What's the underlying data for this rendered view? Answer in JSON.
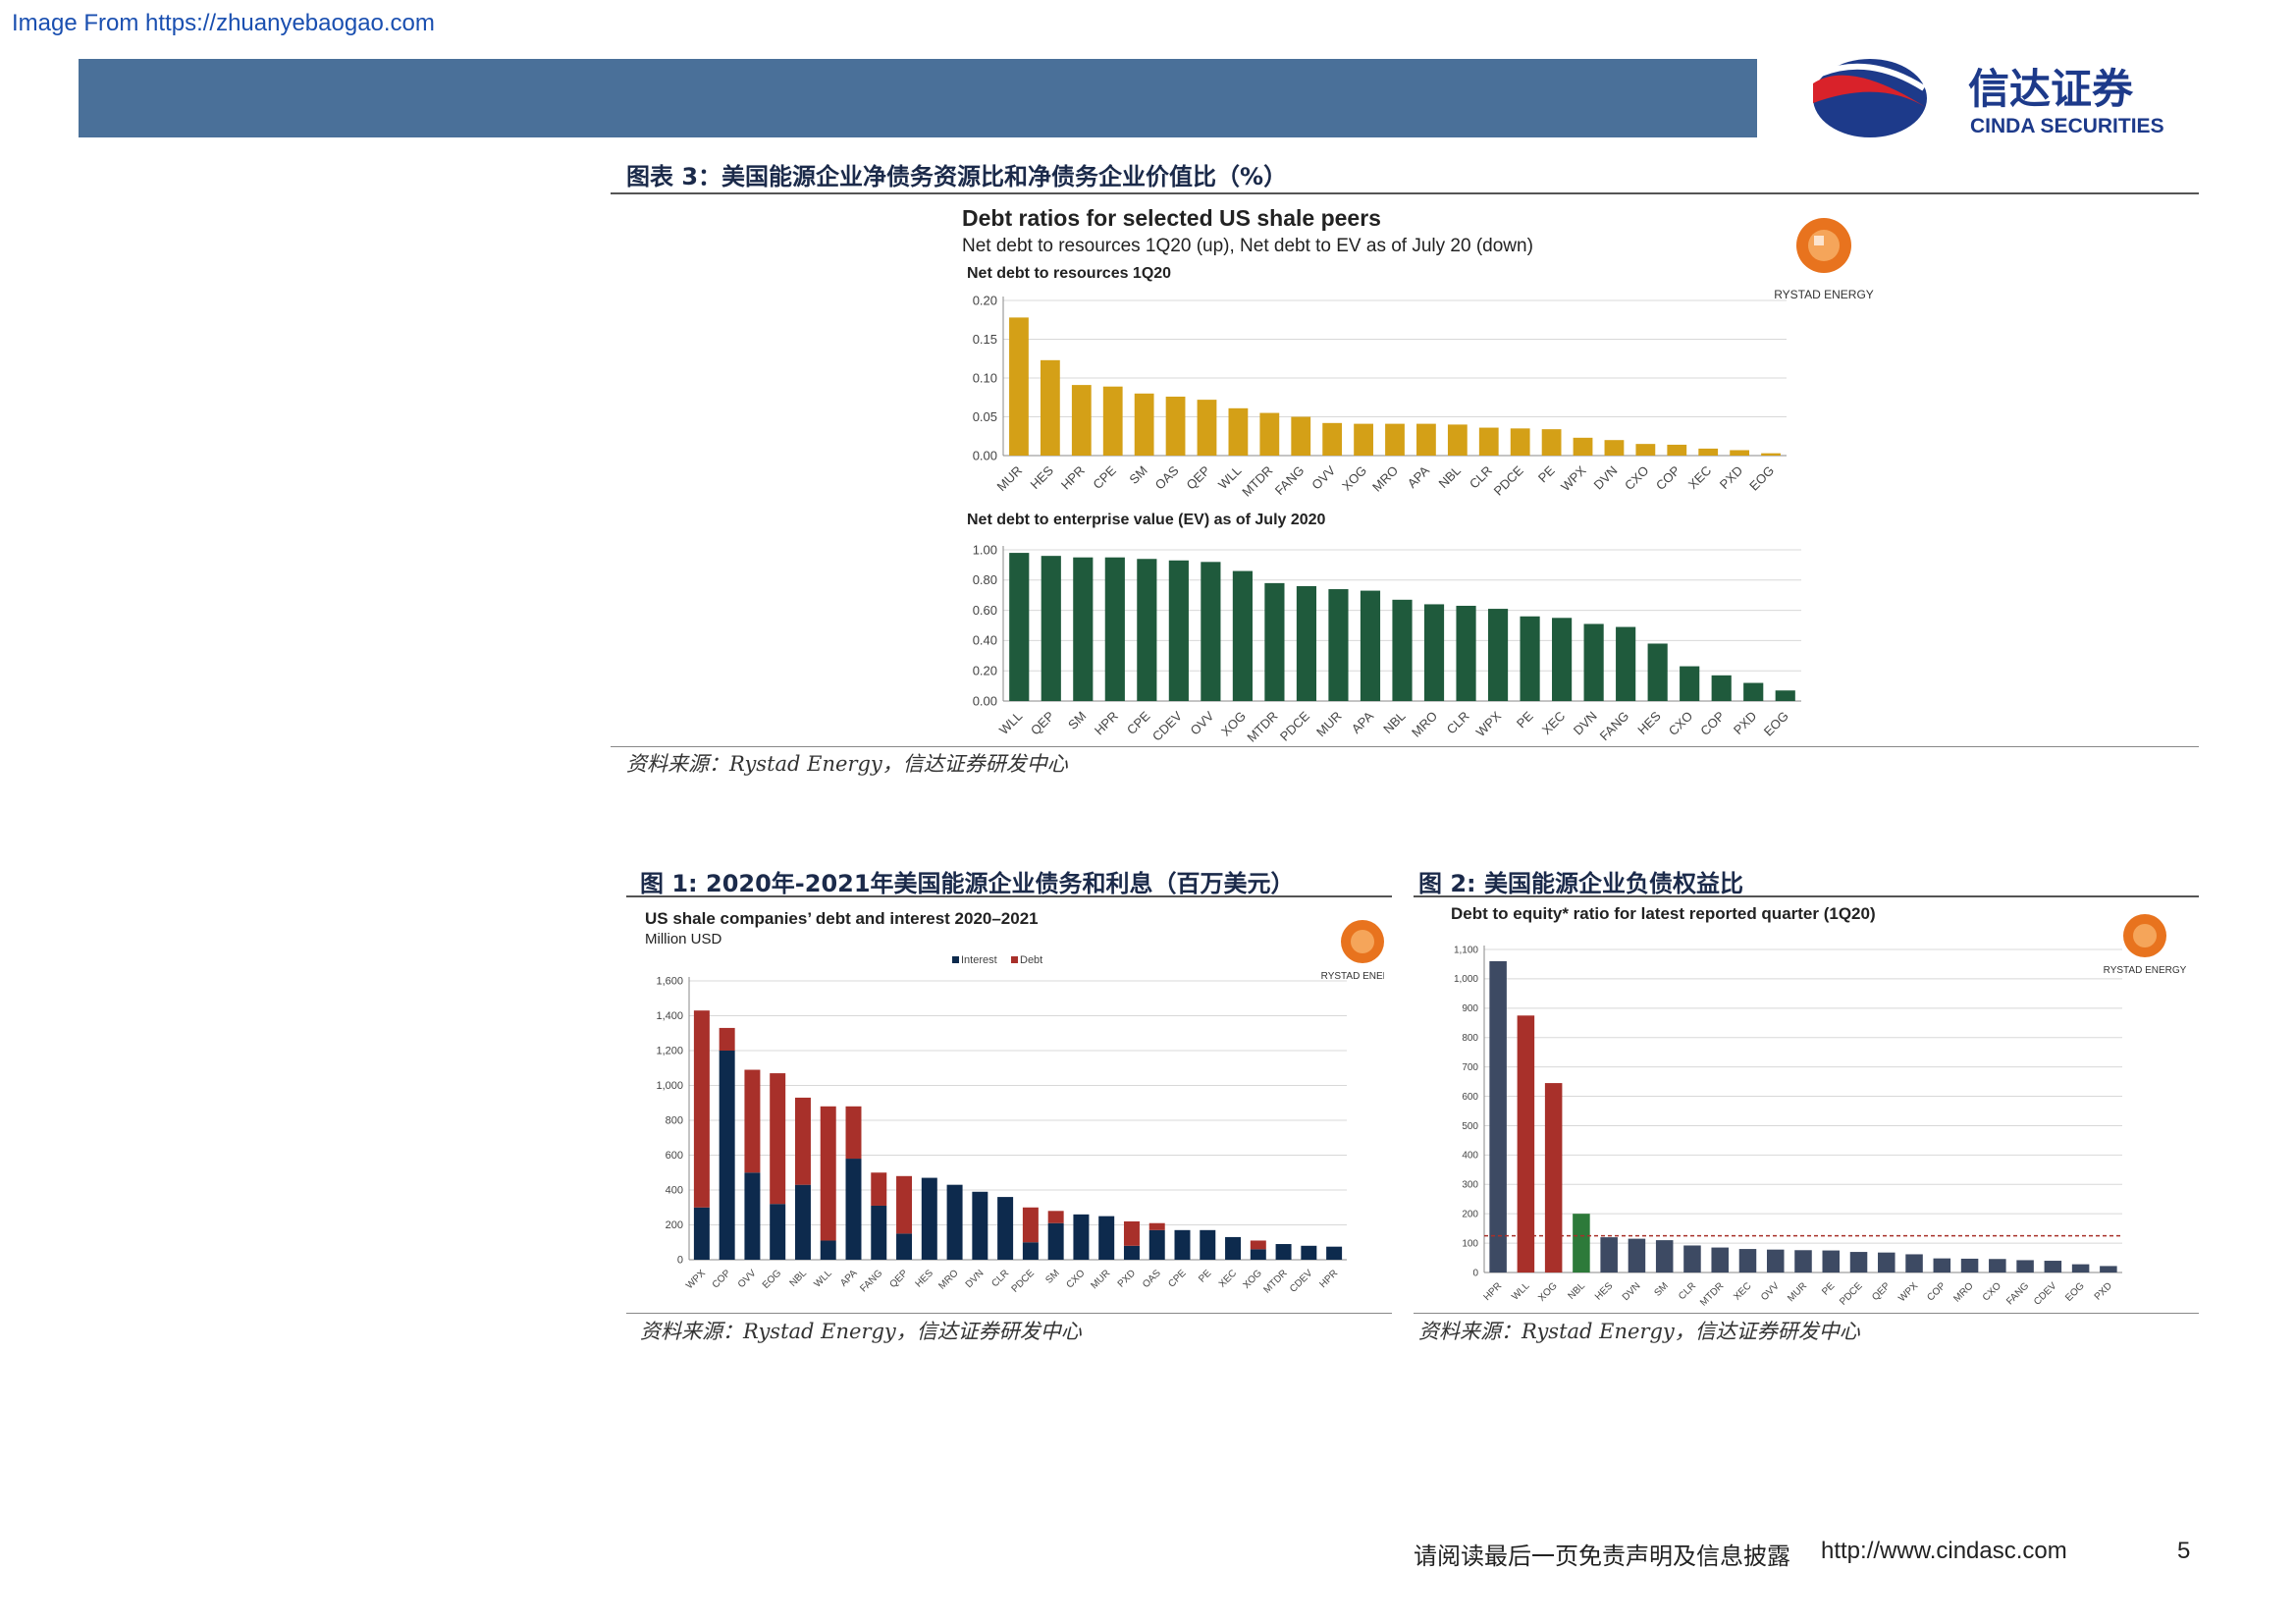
{
  "header": {
    "source_link": "Image From https://zhuanyebaogao.com",
    "brand_cn": "信达证券",
    "brand_en": "CINDA SECURITIES"
  },
  "figure3": {
    "caption": "图表 3：美国能源企业净债务资源比和净债务企业价值比（%）",
    "title": "Debt ratios for selected US shale peers",
    "subtitle": "Net debt to resources 1Q20 (up), Net debt to EV as of July 20 (down)",
    "logo_text": "RYSTAD ENERGY",
    "source": "资料来源：Rystad Energy，信达证券研发中心"
  },
  "figure1": {
    "caption": "图 1: 2020年-2021年美国能源企业债务和利息（百万美元）",
    "source": "资料来源：Rystad Energy，信达证券研发中心",
    "logo_text": "RYSTAD ENERGY"
  },
  "figure2": {
    "caption": "图 2: 美国能源企业负债权益比",
    "source": "资料来源：Rystad Energy，信达证券研发中心",
    "logo_text": "RYSTAD ENERGY"
  },
  "footer": {
    "disclaimer": "请阅读最后一页免责声明及信息披露",
    "url": "http://www.cindasc.com",
    "page": "5"
  },
  "colors": {
    "gold": "#d4a017",
    "green": "#1f5a3c",
    "navy": "#0d2a4d",
    "red": "#a8302a",
    "slate": "#3d4a63",
    "dred": "#a8302a",
    "dgreen": "#2d7a3a"
  },
  "chart_data": [
    {
      "type": "bar",
      "title": "Net debt to resources 1Q20",
      "categories": [
        "MUR",
        "HES",
        "HPR",
        "CPE",
        "SM",
        "OAS",
        "QEP",
        "WLL",
        "MTDR",
        "FANG",
        "OVV",
        "XOG",
        "MRO",
        "APA",
        "NBL",
        "CLR",
        "PDCE",
        "PE",
        "WPX",
        "DVN",
        "CXO",
        "COP",
        "XEC",
        "PXD",
        "EOG"
      ],
      "values": [
        0.178,
        0.123,
        0.091,
        0.089,
        0.08,
        0.076,
        0.072,
        0.061,
        0.055,
        0.05,
        0.042,
        0.041,
        0.041,
        0.041,
        0.04,
        0.036,
        0.035,
        0.034,
        0.023,
        0.02,
        0.015,
        0.014,
        0.009,
        0.007,
        0.003
      ],
      "ylim": [
        0,
        0.2
      ],
      "yticks": [
        "0.00",
        "0.05",
        "0.10",
        "0.15",
        "0.20"
      ],
      "grid": true
    },
    {
      "type": "bar",
      "title": "Net debt to enterprise value (EV) as of July 2020",
      "categories": [
        "WLL",
        "QEP",
        "SM",
        "HPR",
        "CPE",
        "CDEV",
        "OVV",
        "XOG",
        "MTDR",
        "PDCE",
        "MUR",
        "APA",
        "NBL",
        "MRO",
        "CLR",
        "WPX",
        "PE",
        "XEC",
        "DVN",
        "FANG",
        "HES",
        "CXO",
        "COP",
        "PXD",
        "EOG"
      ],
      "values": [
        0.98,
        0.96,
        0.95,
        0.95,
        0.94,
        0.93,
        0.92,
        0.86,
        0.78,
        0.76,
        0.74,
        0.73,
        0.67,
        0.64,
        0.63,
        0.61,
        0.56,
        0.55,
        0.51,
        0.49,
        0.38,
        0.23,
        0.17,
        0.12,
        0.07
      ],
      "ylim": [
        0,
        1.0
      ],
      "yticks": [
        "0.00",
        "0.20",
        "0.40",
        "0.60",
        "0.80",
        "1.00"
      ],
      "grid": true
    },
    {
      "type": "bar",
      "stacked": true,
      "title": "US shale companies’ debt and interest 2020–2021",
      "subtitle": "Million USD",
      "categories": [
        "WPX",
        "COP",
        "OVV",
        "EOG",
        "NBL",
        "WLL",
        "APA",
        "FANG",
        "QEP",
        "HES",
        "MRO",
        "DVN",
        "CLR",
        "PDCE",
        "SM",
        "CXO",
        "MUR",
        "PXD",
        "OAS",
        "CPE",
        "PE",
        "XEC",
        "XOG",
        "MTDR",
        "CDEV",
        "HPR"
      ],
      "series": [
        {
          "name": "Interest",
          "values": [
            300,
            1200,
            500,
            320,
            430,
            110,
            580,
            310,
            150,
            470,
            430,
            390,
            360,
            100,
            210,
            260,
            250,
            80,
            170,
            170,
            170,
            130,
            60,
            90,
            80,
            75
          ]
        },
        {
          "name": "Debt",
          "values": [
            1130,
            130,
            590,
            750,
            500,
            770,
            300,
            190,
            330,
            0,
            0,
            0,
            0,
            200,
            70,
            0,
            0,
            140,
            40,
            0,
            0,
            0,
            50,
            0,
            0,
            0
          ]
        }
      ],
      "ylim": [
        0,
        1600
      ],
      "yticks": [
        "0",
        "200",
        "400",
        "600",
        "800",
        "1,000",
        "1,200",
        "1,400",
        "1,600"
      ],
      "legend": "top-center",
      "grid": true
    },
    {
      "type": "bar",
      "title": "Debt to equity* ratio for latest reported quarter (1Q20)",
      "categories": [
        "HPR",
        "WLL",
        "XOG",
        "NBL",
        "HES",
        "DVN",
        "SM",
        "CLR",
        "MTDR",
        "XEC",
        "OVV",
        "MUR",
        "PE",
        "PDCE",
        "QEP",
        "WPX",
        "COP",
        "MRO",
        "CXO",
        "FANG",
        "CDEV",
        "EOG",
        "PXD"
      ],
      "values": [
        1060,
        875,
        645,
        200,
        120,
        115,
        110,
        92,
        85,
        80,
        78,
        76,
        75,
        70,
        68,
        62,
        48,
        47,
        46,
        42,
        40,
        28,
        22
      ],
      "ylim": [
        0,
        1100
      ],
      "yticks": [
        "0",
        "100",
        "200",
        "300",
        "400",
        "500",
        "600",
        "700",
        "800",
        "900",
        "1,000",
        "1,100"
      ],
      "reference_line": 125,
      "grid": true
    }
  ]
}
